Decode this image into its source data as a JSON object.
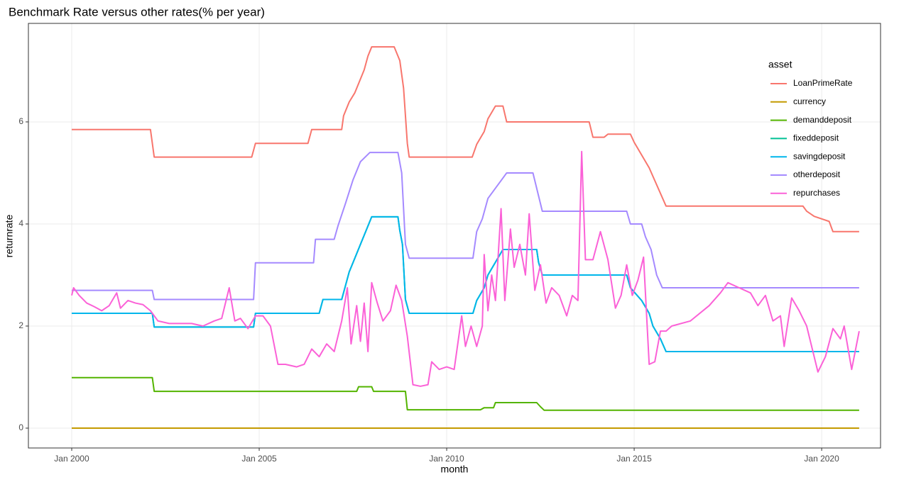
{
  "chart_data": {
    "type": "line",
    "title": "Benchmark Rate versus other rates(% per year)",
    "x_label": "month",
    "y_label": "returnrate",
    "legend_title": "asset",
    "legend_position": "top-right",
    "grid": true,
    "xlim": [
      1998.845,
      2021.57
    ],
    "ylim": [
      -0.389,
      7.93
    ],
    "xticks": [
      {
        "value": 2000,
        "label": "Jan 2000"
      },
      {
        "value": 2005,
        "label": "Jan 2005"
      },
      {
        "value": 2010,
        "label": "Jan 2010"
      },
      {
        "value": 2015,
        "label": "Jan 2015"
      },
      {
        "value": 2020,
        "label": "Jan 2020"
      }
    ],
    "yticks": [
      0,
      2,
      4,
      6
    ],
    "series": [
      {
        "name": "LoanPrimeRate",
        "color": "#F8766D",
        "x": [
          2000.0,
          2002.1,
          2002.2,
          2004.8,
          2004.9,
          2006.3,
          2006.4,
          2007.2,
          2007.25,
          2007.4,
          2007.55,
          2007.7,
          2007.8,
          2007.9,
          2008.0,
          2008.6,
          2008.75,
          2008.85,
          2008.95,
          2009.0,
          2010.68,
          2010.8,
          2011.0,
          2011.1,
          2011.3,
          2011.5,
          2011.6,
          2013.8,
          2013.9,
          2014.2,
          2014.3,
          2014.9,
          2015.0,
          2015.2,
          2015.4,
          2015.55,
          2015.7,
          2015.85,
          2019.5,
          2019.6,
          2019.8,
          2020.2,
          2020.3,
          2021.0
        ],
        "values": [
          5.85,
          5.85,
          5.31,
          5.31,
          5.58,
          5.58,
          5.85,
          5.85,
          6.12,
          6.39,
          6.57,
          6.84,
          7.02,
          7.29,
          7.47,
          7.47,
          7.2,
          6.66,
          5.58,
          5.31,
          5.31,
          5.56,
          5.81,
          6.06,
          6.31,
          6.31,
          6.0,
          6.0,
          5.7,
          5.7,
          5.76,
          5.76,
          5.6,
          5.35,
          5.1,
          4.85,
          4.6,
          4.35,
          4.35,
          4.25,
          4.15,
          4.05,
          3.85,
          3.85
        ]
      },
      {
        "name": "currency",
        "color": "#C49A00",
        "x": [
          2000.0,
          2021.0
        ],
        "values": [
          0,
          0
        ]
      },
      {
        "name": "demanddeposit",
        "color": "#53B400",
        "x": [
          2000.0,
          2002.15,
          2002.2,
          2007.6,
          2007.65,
          2008.0,
          2008.05,
          2008.9,
          2008.95,
          2010.9,
          2011.0,
          2011.25,
          2011.3,
          2012.4,
          2012.5,
          2012.6,
          2021.0
        ],
        "values": [
          0.99,
          0.99,
          0.72,
          0.72,
          0.81,
          0.81,
          0.72,
          0.72,
          0.36,
          0.36,
          0.4,
          0.4,
          0.5,
          0.5,
          0.42,
          0.35,
          0.35
        ]
      },
      {
        "name": "fixeddeposit",
        "color": "#00C094",
        "x": [
          2000.0,
          2002.15,
          2002.2,
          2004.85,
          2004.9,
          2006.6,
          2006.7,
          2007.2,
          2007.3,
          2007.4,
          2007.55,
          2007.7,
          2007.85,
          2008.0,
          2008.7,
          2008.75,
          2008.82,
          2008.9,
          2009.0,
          2010.7,
          2010.8,
          2011.0,
          2011.1,
          2011.3,
          2011.5,
          2012.4,
          2012.45,
          2012.55,
          2014.8,
          2014.9,
          2015.2,
          2015.4,
          2015.5,
          2015.7,
          2015.85,
          2021.0
        ],
        "values": [
          2.25,
          2.25,
          1.98,
          1.98,
          2.25,
          2.25,
          2.52,
          2.52,
          2.79,
          3.06,
          3.33,
          3.6,
          3.87,
          4.14,
          4.14,
          3.87,
          3.6,
          2.52,
          2.25,
          2.25,
          2.5,
          2.75,
          3.0,
          3.25,
          3.5,
          3.5,
          3.25,
          3.0,
          3.0,
          2.75,
          2.5,
          2.25,
          2.0,
          1.75,
          1.5,
          1.5
        ]
      },
      {
        "name": "savingdeposit",
        "color": "#00B6EB",
        "x": [
          2000.0,
          2002.15,
          2002.2,
          2004.85,
          2004.9,
          2006.6,
          2006.7,
          2007.2,
          2007.3,
          2007.4,
          2007.55,
          2007.7,
          2007.85,
          2008.0,
          2008.7,
          2008.75,
          2008.82,
          2008.9,
          2009.0,
          2010.7,
          2010.8,
          2011.0,
          2011.1,
          2011.3,
          2011.5,
          2012.4,
          2012.45,
          2012.55,
          2014.8,
          2014.9,
          2015.2,
          2015.4,
          2015.5,
          2015.7,
          2015.85,
          2021.0
        ],
        "values": [
          2.25,
          2.25,
          1.98,
          1.98,
          2.25,
          2.25,
          2.52,
          2.52,
          2.79,
          3.06,
          3.33,
          3.6,
          3.87,
          4.14,
          4.14,
          3.87,
          3.6,
          2.52,
          2.25,
          2.25,
          2.5,
          2.75,
          3.0,
          3.25,
          3.5,
          3.5,
          3.25,
          3.0,
          3.0,
          2.75,
          2.5,
          2.25,
          2.0,
          1.75,
          1.5,
          1.5
        ]
      },
      {
        "name": "otherdeposit",
        "color": "#A58AFF",
        "x": [
          2000.0,
          2002.15,
          2002.2,
          2004.85,
          2004.9,
          2006.45,
          2006.5,
          2007.0,
          2007.1,
          2007.3,
          2007.5,
          2007.7,
          2007.95,
          2008.7,
          2008.8,
          2008.9,
          2009.0,
          2010.7,
          2010.8,
          2010.95,
          2011.1,
          2011.35,
          2011.6,
          2012.3,
          2012.55,
          2014.8,
          2014.9,
          2015.2,
          2015.3,
          2015.45,
          2015.6,
          2015.75,
          2021.0
        ],
        "values": [
          2.7,
          2.7,
          2.52,
          2.52,
          3.24,
          3.24,
          3.7,
          3.7,
          3.96,
          4.4,
          4.86,
          5.22,
          5.4,
          5.4,
          5.0,
          3.6,
          3.33,
          3.33,
          3.85,
          4.1,
          4.5,
          4.75,
          5.0,
          5.0,
          4.25,
          4.25,
          4.0,
          4.0,
          3.75,
          3.5,
          3.0,
          2.75,
          2.75
        ]
      },
      {
        "name": "repurchases",
        "color": "#FB61D7",
        "x": [
          2000.0,
          2000.05,
          2000.2,
          2000.4,
          2000.6,
          2000.8,
          2001.0,
          2001.2,
          2001.3,
          2001.5,
          2001.7,
          2001.9,
          2002.1,
          2002.3,
          2002.6,
          2002.9,
          2003.2,
          2003.5,
          2003.8,
          2004.0,
          2004.2,
          2004.35,
          2004.5,
          2004.7,
          2004.9,
          2005.1,
          2005.3,
          2005.5,
          2005.7,
          2006.0,
          2006.2,
          2006.4,
          2006.6,
          2006.8,
          2007.0,
          2007.2,
          2007.35,
          2007.45,
          2007.6,
          2007.7,
          2007.8,
          2007.9,
          2008.0,
          2008.15,
          2008.3,
          2008.5,
          2008.65,
          2008.8,
          2008.95,
          2009.1,
          2009.3,
          2009.5,
          2009.6,
          2009.8,
          2010.0,
          2010.2,
          2010.4,
          2010.5,
          2010.65,
          2010.8,
          2010.95,
          2011.0,
          2011.1,
          2011.2,
          2011.3,
          2011.45,
          2011.55,
          2011.7,
          2011.8,
          2011.95,
          2012.1,
          2012.2,
          2012.35,
          2012.5,
          2012.65,
          2012.8,
          2013.0,
          2013.2,
          2013.35,
          2013.5,
          2013.6,
          2013.7,
          2013.9,
          2014.1,
          2014.3,
          2014.5,
          2014.65,
          2014.8,
          2014.95,
          2015.1,
          2015.25,
          2015.4,
          2015.55,
          2015.7,
          2015.85,
          2016.0,
          2016.5,
          2017.0,
          2017.3,
          2017.5,
          2017.8,
          2018.1,
          2018.3,
          2018.5,
          2018.7,
          2018.9,
          2019.0,
          2019.2,
          2019.4,
          2019.6,
          2019.9,
          2020.1,
          2020.3,
          2020.5,
          2020.6,
          2020.8,
          2021.0
        ],
        "values": [
          2.6,
          2.75,
          2.6,
          2.45,
          2.38,
          2.3,
          2.4,
          2.65,
          2.35,
          2.5,
          2.45,
          2.42,
          2.3,
          2.1,
          2.05,
          2.05,
          2.05,
          2.0,
          2.1,
          2.15,
          2.75,
          2.1,
          2.15,
          1.95,
          2.2,
          2.2,
          2.0,
          1.25,
          1.25,
          1.2,
          1.25,
          1.55,
          1.4,
          1.65,
          1.5,
          2.1,
          2.75,
          1.65,
          2.4,
          1.7,
          2.45,
          1.5,
          2.85,
          2.45,
          2.1,
          2.3,
          2.8,
          2.5,
          1.8,
          0.85,
          0.82,
          0.85,
          1.3,
          1.15,
          1.2,
          1.15,
          2.2,
          1.6,
          2.0,
          1.6,
          2.0,
          3.4,
          2.3,
          3.0,
          2.5,
          4.3,
          2.5,
          3.9,
          3.15,
          3.6,
          3.0,
          4.2,
          2.7,
          3.2,
          2.45,
          2.75,
          2.6,
          2.2,
          2.6,
          2.5,
          5.42,
          3.3,
          3.3,
          3.85,
          3.3,
          2.35,
          2.6,
          3.2,
          2.6,
          2.9,
          3.35,
          1.25,
          1.3,
          1.9,
          1.9,
          2.0,
          2.1,
          2.4,
          2.65,
          2.85,
          2.75,
          2.65,
          2.4,
          2.6,
          2.1,
          2.2,
          1.6,
          2.55,
          2.3,
          2.0,
          1.1,
          1.4,
          1.95,
          1.75,
          2.0,
          1.15,
          1.9
        ]
      }
    ]
  }
}
